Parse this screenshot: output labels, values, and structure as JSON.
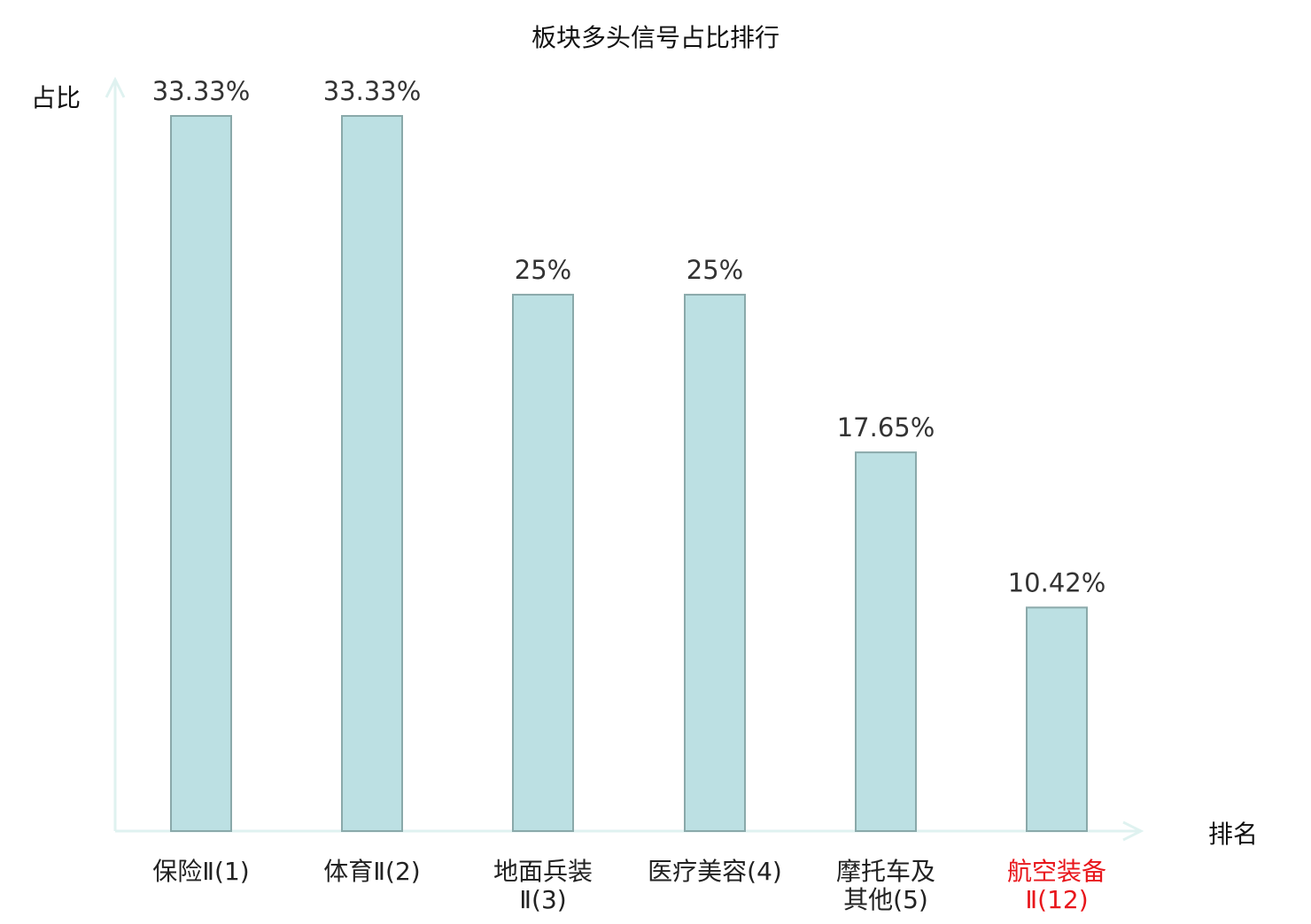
{
  "chart_data": {
    "type": "bar",
    "title": "板块多头信号占比排行",
    "xlabel": "排名",
    "ylabel": "占比",
    "categories": [
      [
        "保险Ⅱ(1)"
      ],
      [
        "体育Ⅱ(2)"
      ],
      [
        "地面兵装",
        "Ⅱ(3)"
      ],
      [
        "医疗美容(4)"
      ],
      [
        "摩托车及",
        "其他(5)"
      ],
      [
        "航空装备",
        "Ⅱ(12)"
      ]
    ],
    "values": [
      33.33,
      33.33,
      25,
      25,
      17.65,
      10.42
    ],
    "data_labels": [
      "33.33%",
      "33.33%",
      "25%",
      "25%",
      "17.65%",
      "10.42%"
    ],
    "highlight_index": 5,
    "ylim": [
      0,
      35
    ],
    "grid": false,
    "colors": {
      "bar_fill": "#bce0e3",
      "bar_stroke": "#8aa9aa",
      "axis": "#dff2f0",
      "label_text": "#222222",
      "value_text": "#333333",
      "highlight_text": "#e8161b"
    }
  }
}
